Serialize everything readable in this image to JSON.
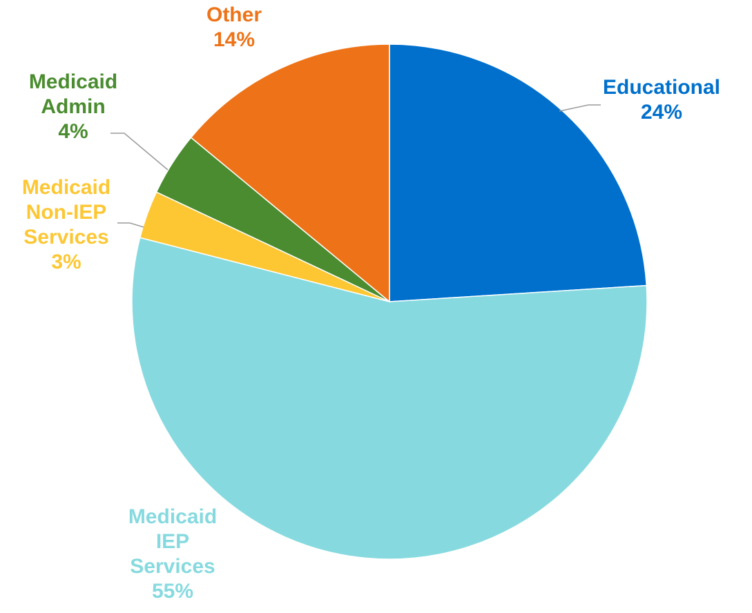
{
  "chart_data": {
    "type": "pie",
    "title": "",
    "start_angle_deg": 0,
    "direction": "clockwise",
    "slices": [
      {
        "label": [
          "Educational"
        ],
        "value": 24,
        "display": "24%",
        "color": "#0070CC"
      },
      {
        "label": [
          "Medicaid",
          "IEP",
          "Services"
        ],
        "value": 55,
        "display": "55%",
        "color": "#86DADF"
      },
      {
        "label": [
          "Medicaid",
          "Non-IEP",
          "Services"
        ],
        "value": 3,
        "display": "3%",
        "color": "#FDC734"
      },
      {
        "label": [
          "Medicaid",
          "Admin"
        ],
        "value": 4,
        "display": "4%",
        "color": "#4A8C2F"
      },
      {
        "label": [
          "Other"
        ],
        "value": 14,
        "display": "14%",
        "color": "#EE7318"
      }
    ],
    "leader_line_color": "#9A9A9A",
    "slice_border_color": "#FFFFFF"
  }
}
